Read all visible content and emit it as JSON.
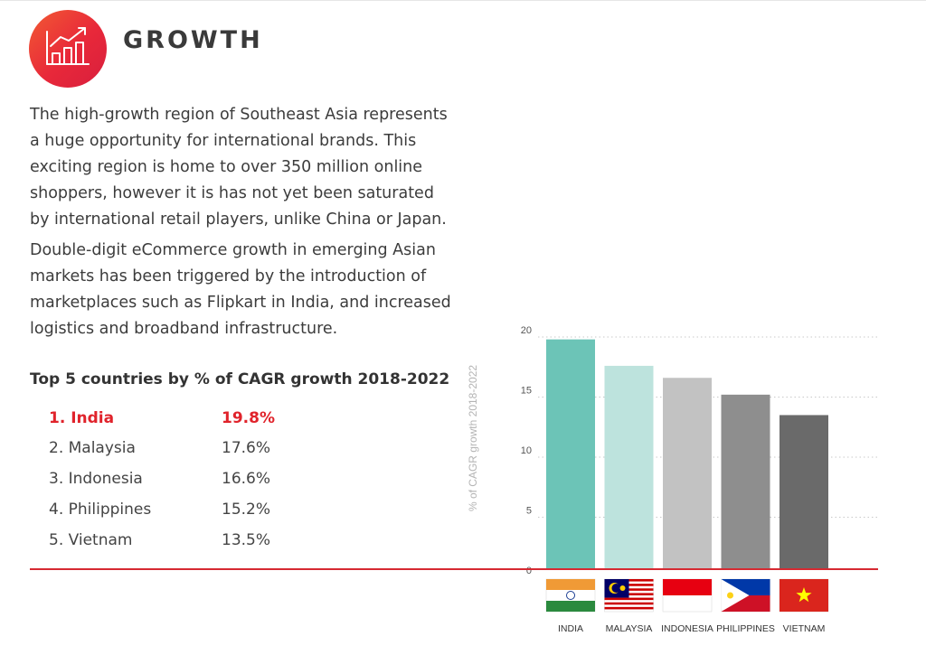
{
  "header": {
    "icon": "growth-chart-icon",
    "title": "GROWTH"
  },
  "paragraphs": [
    "The high-growth region of Southeast Asia represents a huge opportunity for international brands. This exciting region is home to over 350 million online shoppers, however it is has not yet been saturated by international retail players, unlike China or Japan.",
    "Double-digit eCommerce growth in emerging Asian markets has been triggered by the introduction of marketplaces such as Flipkart in India, and increased logistics and broadband infrastructure."
  ],
  "ranking": {
    "title": "Top 5 countries by % of CAGR growth 2018-2022",
    "highlight_color": "#e0232b",
    "rows": [
      {
        "name": "1. India",
        "value": "19.8%"
      },
      {
        "name": "2. Malaysia",
        "value": "17.6%"
      },
      {
        "name": "3. Indonesia",
        "value": "16.6%"
      },
      {
        "name": "4. Philippines",
        "value": "15.2%"
      },
      {
        "name": "5. Vietnam",
        "value": "13.5%"
      }
    ]
  },
  "colors": {
    "accent": "#d62a32",
    "badge_gradient": [
      "#f25a33",
      "#d81f3d"
    ]
  },
  "chart_data": {
    "type": "bar",
    "categories": [
      "INDIA",
      "MALAYSIA",
      "INDONESIA",
      "PHILIPPINES",
      "VIETNAM"
    ],
    "values": [
      19.8,
      17.6,
      16.6,
      15.2,
      13.5
    ],
    "bar_colors": [
      "#6cc4b7",
      "#bde3dd",
      "#c2c2c2",
      "#8e8e8e",
      "#6a6a6a"
    ],
    "ylabel": "% of CAGR growth 2018-2022",
    "ylim": [
      0,
      20
    ],
    "yticks": [
      0,
      5,
      10,
      15,
      20
    ],
    "grid": true,
    "flags": [
      "india-flag-icon",
      "malaysia-flag-icon",
      "indonesia-flag-icon",
      "philippines-flag-icon",
      "vietnam-flag-icon"
    ]
  }
}
